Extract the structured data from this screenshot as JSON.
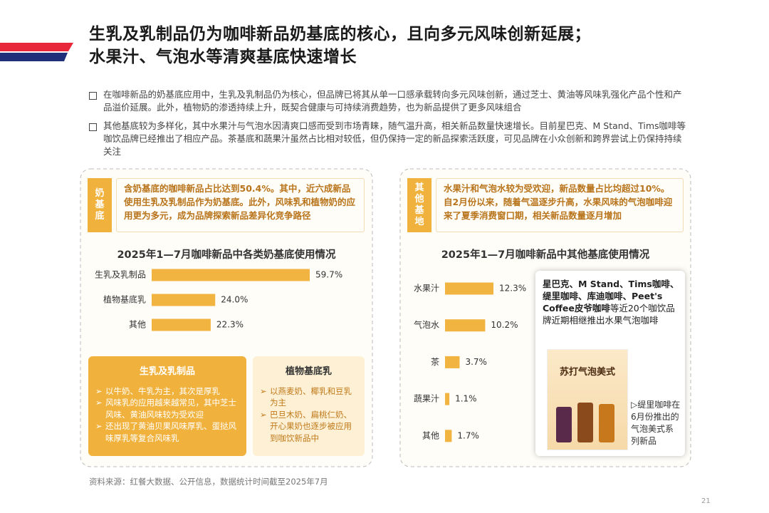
{
  "header": {
    "title_lines": [
      "生乳及乳制品仍为咖啡新品奶基底的核心，且向多元风味创新延展；",
      "水果汁、气泡水等清爽基底快速增长"
    ]
  },
  "bullets": [
    "在咖啡新品的奶基底应用中，生乳及乳制品仍为核心，但品牌已将其从单一口感承载转向多元风味创新，通过芝士、黄油等风味乳强化产品个性和产品溢价延展。此外，植物奶的渗透持续上升，既契合健康与可持续消费趋势，也为新品提供了更多风味组合",
    "其他基底较为多样化，其中水果汁与气泡水因清爽口感而受到市场青睐，随气温升高，相关新品数量快速增长。目前星巴克、M Stand、Tims咖啡等咖饮品牌已经推出了相应产品。茶基底和蔬果汁虽然占比相对较低，但仍保持一定的新品探索活跃度，可见品牌在小众创新和跨界尝试上仍保持持续关注"
  ],
  "left_panel": {
    "tag": "奶基底",
    "note": "含奶基底的咖啡新品占比达到50.4%。其中，近六成新品使用生乳及乳制品作为奶基底。此外，风味乳和植物奶的应用更为多元，成为品牌探索新品差异化竞争路径",
    "cards": [
      {
        "title": "生乳及乳制品",
        "items": [
          "以牛奶、牛乳为主，其次是厚乳",
          "风味乳的应用越来越常见，其中芝士风味、黄油风味较为受欢迎",
          "还出现了黄油贝果风味厚乳、蛋挞风味厚乳等复合风味乳"
        ]
      },
      {
        "title": "植物基底乳",
        "items": [
          "以燕麦奶、椰乳和豆乳为主",
          "巴旦木奶、扁桃仁奶、开心果奶也逐步被应用到咖饮新品中"
        ]
      }
    ]
  },
  "right_panel": {
    "tag": "其他基地",
    "note": "水果汁和气泡水较为受欢迎，新品数量占比均超过10%。自2月份以来，随着气温逐步升高，水果风味的气泡咖啡迎来了夏季消费窗口期，相关新品数量逐月增加",
    "callout_bold": "星巴克、M Stand、Tims咖啡、缇里咖啡、库迪咖啡、Peet's Coffee皮爷咖啡",
    "callout_rest": "等近20个咖饮品牌近期相继推出水果气泡咖啡",
    "image_title": "苏打气泡美式",
    "image_caption": "▷缇里咖啡在6月份推出的气泡美式系列新品"
  },
  "chart_data": [
    {
      "type": "bar",
      "orientation": "horizontal",
      "title": "2025年1—7月咖啡新品中各类奶基底使用情况",
      "categories": [
        "生乳及乳制品",
        "植物基底乳",
        "其他"
      ],
      "values": [
        59.7,
        24.0,
        22.3
      ],
      "value_labels": [
        "59.7%",
        "24.0%",
        "22.3%"
      ],
      "color": "#f2b440"
    },
    {
      "type": "bar",
      "orientation": "horizontal",
      "title": "2025年1—7月咖啡新品中其他基底使用情况",
      "categories": [
        "水果汁",
        "气泡水",
        "茶",
        "蔬果汁",
        "其他"
      ],
      "values": [
        12.3,
        10.2,
        3.7,
        1.1,
        1.7
      ],
      "value_labels": [
        "12.3%",
        "10.2%",
        "3.7%",
        "1.1%",
        "1.7%"
      ],
      "color": "#f2b440"
    }
  ],
  "footer": {
    "source": "资料来源：红餐大数据、公开信息，数据统计时间截至2025年7月",
    "page_number": "21"
  }
}
